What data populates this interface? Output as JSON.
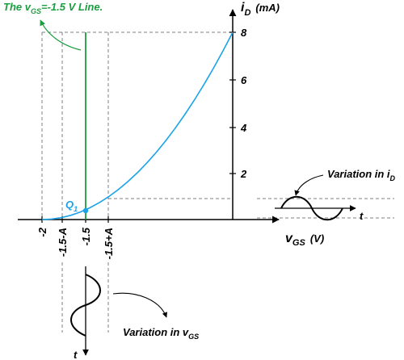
{
  "colors": {
    "curve": "#1aa3e8",
    "vline": "#1a9e3f",
    "axis": "#000000",
    "dash": "#7f7f7f",
    "text": "#000000"
  },
  "labels": {
    "vline_title_prefix": "The v",
    "vline_title_sub": "GS",
    "vline_title_suffix": "=-1.5 V Line.",
    "iD_main": "i",
    "iD_sub": "D",
    "iD_unit": "(mA)",
    "vGS_main": "v",
    "vGS_sub": "GS",
    "vGS_unit": "(V)",
    "q_point_main": "Q",
    "q_point_sub": "1",
    "variation_iD_prefix": "Variation in i",
    "variation_iD_sub": "D",
    "variation_vGS_prefix": "Variation in v",
    "variation_vGS_sub": "GS",
    "t_label": "t"
  },
  "y_ticks": [
    "2",
    "4",
    "6",
    "8"
  ],
  "x_ticks": [
    "-2",
    "-1.5-A",
    "-1.5",
    "-1.5+A"
  ],
  "chart_data": {
    "type": "line",
    "x": [
      -2.0,
      -1.9,
      -1.8,
      -1.7,
      -1.6,
      -1.5,
      -1.4,
      -1.3,
      -1.2,
      -1.1,
      -1.0,
      -0.9,
      -0.8,
      -0.7,
      -0.6,
      -0.5,
      -0.4,
      -0.3,
      -0.2,
      -0.1,
      0.0
    ],
    "y": [
      0.0,
      0.02,
      0.08,
      0.18,
      0.32,
      0.5,
      0.72,
      0.98,
      1.28,
      1.62,
      2.0,
      2.42,
      2.88,
      3.38,
      3.92,
      4.5,
      5.12,
      5.78,
      6.48,
      7.22,
      8.0
    ],
    "xlabel": "vGS (V)",
    "ylabel": "iD (mA)",
    "q_point": {
      "x": -1.5,
      "y": 0.5
    }
  }
}
